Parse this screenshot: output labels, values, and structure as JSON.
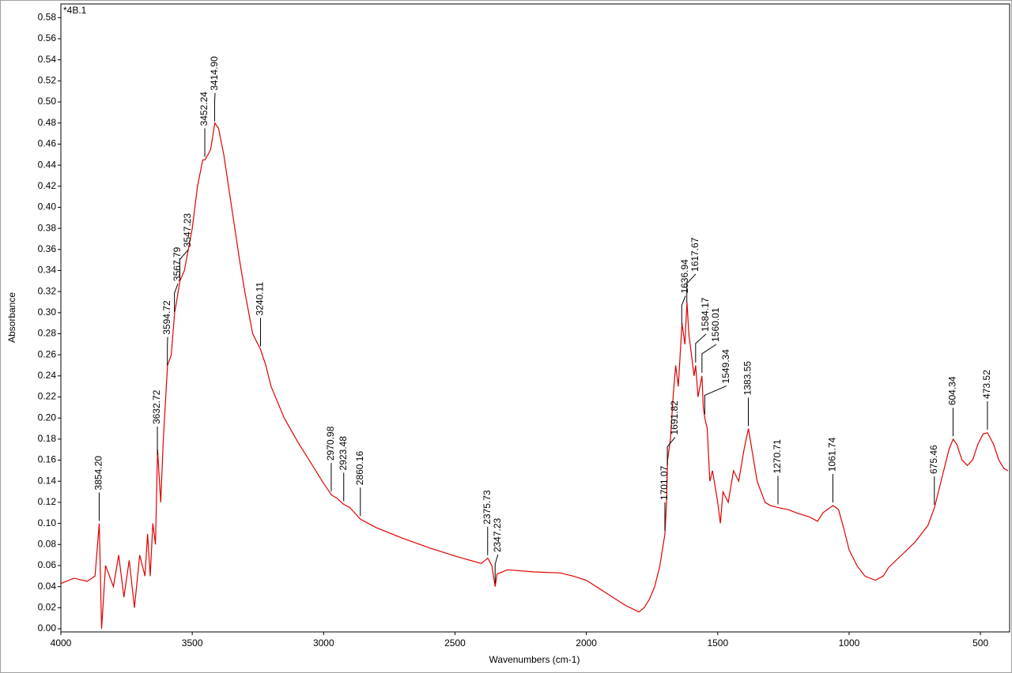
{
  "chart_data": {
    "type": "line",
    "title": "*4B.1",
    "x_label": "Wavenumbers (cm-1)",
    "y_label": "Absorbance",
    "color": "#e00000",
    "xlim": [
      4000,
      389
    ],
    "ylim": [
      -0.003,
      0.593
    ],
    "xticks": [
      4000,
      3500,
      3000,
      2500,
      2000,
      1500,
      1000,
      500
    ],
    "yticks": [
      {
        "value": 0,
        "label": "0.00"
      },
      {
        "value": 0.02,
        "label": "0.02"
      },
      {
        "value": 0.04,
        "label": "0.04"
      },
      {
        "value": 0.06,
        "label": "0.06"
      },
      {
        "value": 0.08,
        "label": "0.08"
      },
      {
        "value": 0.1,
        "label": "0.10"
      },
      {
        "value": 0.12,
        "label": "0.12"
      },
      {
        "value": 0.14,
        "label": "0.14"
      },
      {
        "value": 0.16,
        "label": "0.16"
      },
      {
        "value": 0.18,
        "label": "0.18"
      },
      {
        "value": 0.2,
        "label": "0.20"
      },
      {
        "value": 0.22,
        "label": "0.22"
      },
      {
        "value": 0.24,
        "label": "0.24"
      },
      {
        "value": 0.26,
        "label": "0.26"
      },
      {
        "value": 0.28,
        "label": "0.28"
      },
      {
        "value": 0.3,
        "label": "0.30"
      },
      {
        "value": 0.32,
        "label": "0.32"
      },
      {
        "value": 0.34,
        "label": "0.34"
      },
      {
        "value": 0.36,
        "label": "0.36"
      },
      {
        "value": 0.38,
        "label": "0.38"
      },
      {
        "value": 0.4,
        "label": "0.40"
      },
      {
        "value": 0.42,
        "label": "0.42"
      },
      {
        "value": 0.44,
        "label": "0.44"
      },
      {
        "value": 0.46,
        "label": "0.46"
      },
      {
        "value": 0.48,
        "label": "0.48"
      },
      {
        "value": 0.5,
        "label": "0.50"
      },
      {
        "value": 0.52,
        "label": "0.52"
      },
      {
        "value": 0.54,
        "label": "0.54"
      },
      {
        "value": 0.56,
        "label": "0.56"
      },
      {
        "value": 0.58,
        "label": "0.58"
      }
    ],
    "x": [
      4000,
      3950,
      3900,
      3870,
      3854,
      3845,
      3830,
      3800,
      3780,
      3760,
      3740,
      3720,
      3700,
      3680,
      3670,
      3660,
      3650,
      3640,
      3632,
      3620,
      3610,
      3594,
      3580,
      3567,
      3560,
      3547,
      3530,
      3500,
      3480,
      3460,
      3452,
      3440,
      3430,
      3414,
      3400,
      3380,
      3350,
      3320,
      3300,
      3270,
      3240,
      3220,
      3200,
      3150,
      3100,
      3050,
      3000,
      2970,
      2950,
      2923,
      2900,
      2860,
      2800,
      2700,
      2600,
      2500,
      2400,
      2375,
      2360,
      2347,
      2340,
      2300,
      2200,
      2100,
      2050,
      2000,
      1950,
      1900,
      1850,
      1800,
      1780,
      1760,
      1740,
      1720,
      1701,
      1695,
      1691,
      1680,
      1670,
      1660,
      1650,
      1636,
      1625,
      1617,
      1610,
      1600,
      1590,
      1584,
      1575,
      1560,
      1555,
      1549,
      1540,
      1530,
      1520,
      1500,
      1490,
      1480,
      1460,
      1440,
      1420,
      1400,
      1383,
      1370,
      1350,
      1320,
      1300,
      1270,
      1230,
      1200,
      1150,
      1120,
      1100,
      1061,
      1040,
      1020,
      1000,
      970,
      940,
      900,
      870,
      850,
      800,
      750,
      700,
      675,
      660,
      640,
      620,
      604,
      590,
      570,
      550,
      530,
      510,
      490,
      473,
      450,
      430,
      410,
      395
    ],
    "values": [
      0.043,
      0.048,
      0.045,
      0.05,
      0.1,
      0.0,
      0.06,
      0.04,
      0.07,
      0.03,
      0.065,
      0.02,
      0.07,
      0.05,
      0.09,
      0.05,
      0.1,
      0.08,
      0.17,
      0.12,
      0.18,
      0.25,
      0.26,
      0.3,
      0.31,
      0.33,
      0.34,
      0.38,
      0.42,
      0.445,
      0.445,
      0.45,
      0.455,
      0.48,
      0.475,
      0.45,
      0.4,
      0.35,
      0.32,
      0.28,
      0.265,
      0.25,
      0.23,
      0.2,
      0.178,
      0.158,
      0.138,
      0.127,
      0.124,
      0.118,
      0.115,
      0.104,
      0.096,
      0.086,
      0.077,
      0.069,
      0.062,
      0.067,
      0.06,
      0.04,
      0.052,
      0.056,
      0.054,
      0.053,
      0.05,
      0.046,
      0.038,
      0.03,
      0.022,
      0.016,
      0.02,
      0.028,
      0.04,
      0.06,
      0.09,
      0.12,
      0.16,
      0.18,
      0.22,
      0.25,
      0.23,
      0.29,
      0.27,
      0.31,
      0.28,
      0.26,
      0.24,
      0.25,
      0.22,
      0.24,
      0.21,
      0.2,
      0.19,
      0.14,
      0.15,
      0.12,
      0.1,
      0.13,
      0.12,
      0.15,
      0.14,
      0.17,
      0.19,
      0.17,
      0.14,
      0.12,
      0.117,
      0.115,
      0.113,
      0.11,
      0.106,
      0.102,
      0.11,
      0.117,
      0.113,
      0.095,
      0.075,
      0.06,
      0.05,
      0.046,
      0.05,
      0.058,
      0.07,
      0.082,
      0.098,
      0.115,
      0.13,
      0.15,
      0.17,
      0.18,
      0.175,
      0.16,
      0.155,
      0.16,
      0.175,
      0.185,
      0.186,
      0.175,
      0.16,
      0.152,
      0.15
    ],
    "annotations": [
      {
        "value": 3854.2,
        "label": "3854.20"
      },
      {
        "value": 3632.72,
        "label": "3632.72"
      },
      {
        "value": 3594.72,
        "label": "3594.72"
      },
      {
        "value": 3567.79,
        "label": "3567.79"
      },
      {
        "value": 3547.23,
        "label": "3547.23"
      },
      {
        "value": 3452.24,
        "label": "3452.24"
      },
      {
        "value": 3414.9,
        "label": "3414.90"
      },
      {
        "value": 3240.11,
        "label": "3240.11"
      },
      {
        "value": 2970.98,
        "label": "2970.98"
      },
      {
        "value": 2923.48,
        "label": "2923.48"
      },
      {
        "value": 2860.16,
        "label": "2860.16"
      },
      {
        "value": 2375.73,
        "label": "2375.73"
      },
      {
        "value": 2347.23,
        "label": "2347.23"
      },
      {
        "value": 1701.07,
        "label": "1701.07"
      },
      {
        "value": 1691.82,
        "label": "1691.82"
      },
      {
        "value": 1636.94,
        "label": "1636.94"
      },
      {
        "value": 1617.67,
        "label": "1617.67"
      },
      {
        "value": 1584.17,
        "label": "1584.17"
      },
      {
        "value": 1560.01,
        "label": "1560.01"
      },
      {
        "value": 1549.34,
        "label": "1549.34"
      },
      {
        "value": 1383.55,
        "label": "1383.55"
      },
      {
        "value": 1270.71,
        "label": "1270.71"
      },
      {
        "value": 1061.74,
        "label": "1061.74"
      },
      {
        "value": 675.46,
        "label": "675.46"
      },
      {
        "value": 604.34,
        "label": "604.34"
      },
      {
        "value": 473.52,
        "label": "473.52"
      }
    ]
  }
}
